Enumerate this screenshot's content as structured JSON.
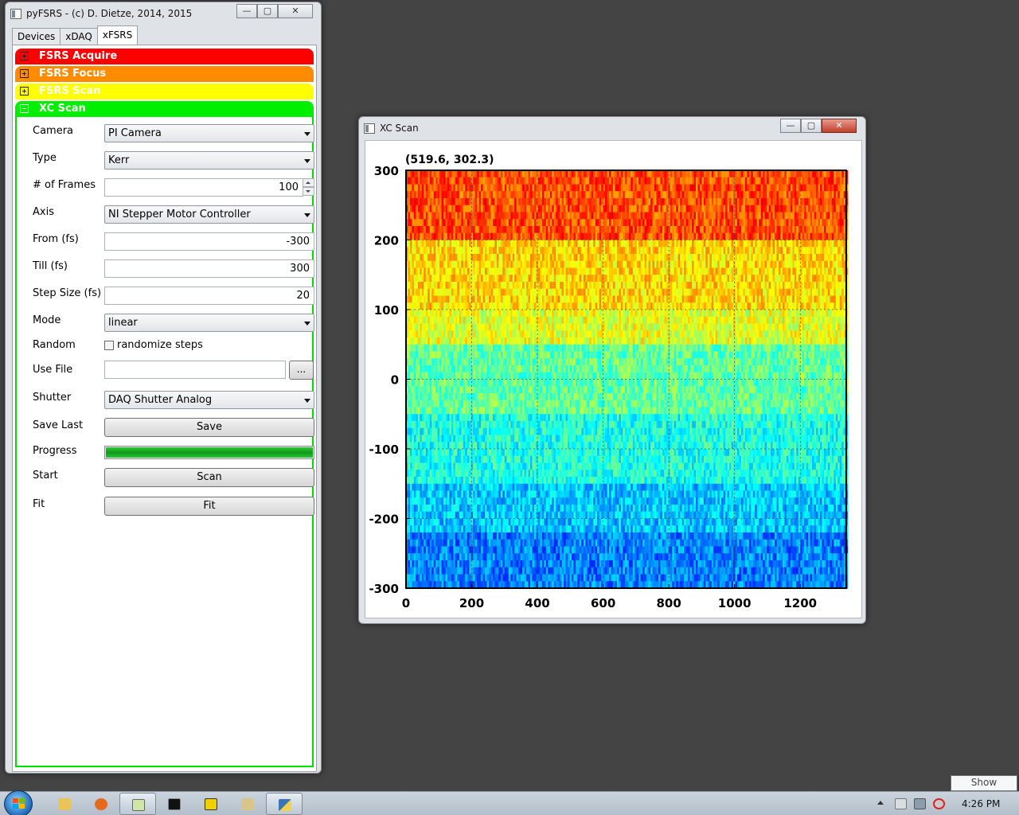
{
  "main_window": {
    "title": "pyFSRS - (c) D. Dietze, 2014, 2015",
    "caption": {
      "minimize": "—",
      "maximize": "▢",
      "close": "✕"
    },
    "tabs": [
      "Devices",
      "xDAQ",
      "xFSRS"
    ],
    "active_tab": "xFSRS",
    "sections": [
      {
        "label": "FSRS Acquire",
        "expanded": false,
        "color": "#ff0000"
      },
      {
        "label": "FSRS Focus",
        "expanded": false,
        "color": "#ff8c00"
      },
      {
        "label": "FSRS Scan",
        "expanded": false,
        "color": "#ffff00"
      },
      {
        "label": "XC Scan",
        "expanded": true,
        "color": "#00ee00"
      }
    ],
    "xc_scan": {
      "camera_label": "Camera",
      "camera_value": "PI Camera",
      "type_label": "Type",
      "type_value": "Kerr",
      "frames_label": "# of Frames",
      "frames_value": "100",
      "axis_label": "Axis",
      "axis_value": "NI Stepper Motor Controller",
      "from_label": "From (fs)",
      "from_value": "-300",
      "till_label": "Till (fs)",
      "till_value": "300",
      "step_label": "Step Size (fs)",
      "step_value": "20",
      "mode_label": "Mode",
      "mode_value": "linear",
      "random_label": "Random",
      "random_checkbox_label": "randomize steps",
      "random_checked": false,
      "usefile_label": "Use File",
      "usefile_value": "",
      "browse_label": "...",
      "shutter_label": "Shutter",
      "shutter_value": "DAQ Shutter Analog",
      "savelast_label": "Save Last",
      "save_button": "Save",
      "progress_label": "Progress",
      "progress_fraction": 1.0,
      "start_label": "Start",
      "scan_button": "Scan",
      "fit_label": "Fit",
      "fit_button": "Fit"
    }
  },
  "plot_window": {
    "title": "XC Scan",
    "caption": {
      "minimize": "—",
      "maximize": "▢",
      "close": "✕"
    },
    "cursor_readout": "(519.6, 302.3)"
  },
  "chart_data": {
    "type": "heatmap",
    "title": "",
    "xlabel": "",
    "ylabel": "",
    "xlim": [
      0,
      1340
    ],
    "ylim": [
      -300,
      300
    ],
    "x_ticks": [
      "0",
      "200",
      "400",
      "600",
      "800",
      "1000",
      "1200"
    ],
    "y_ticks": [
      "300",
      "200",
      "100",
      "0",
      "-100",
      "-200",
      "-300"
    ],
    "grid": true,
    "colormap": "jet",
    "row_levels": [
      {
        "y_from": 300,
        "y_to": 200,
        "mean_level": 0.8
      },
      {
        "y_from": 200,
        "y_to": 100,
        "mean_level": 0.66
      },
      {
        "y_from": 100,
        "y_to": 50,
        "mean_level": 0.6
      },
      {
        "y_from": 50,
        "y_to": -50,
        "mean_level": 0.47
      },
      {
        "y_from": -50,
        "y_to": -150,
        "mean_level": 0.4
      },
      {
        "y_from": -150,
        "y_to": -220,
        "mean_level": 0.32
      },
      {
        "y_from": -220,
        "y_to": -300,
        "mean_level": 0.25
      }
    ]
  },
  "taskbar": {
    "clock": "4:26 PM",
    "tooltip": "Show desktop",
    "apps": [
      "explorer-icon",
      "firefox-icon",
      "notepad-icon",
      "cmd-icon",
      "labview-icon",
      "editor-icon",
      "python-icon"
    ],
    "active_app": "python-icon"
  }
}
